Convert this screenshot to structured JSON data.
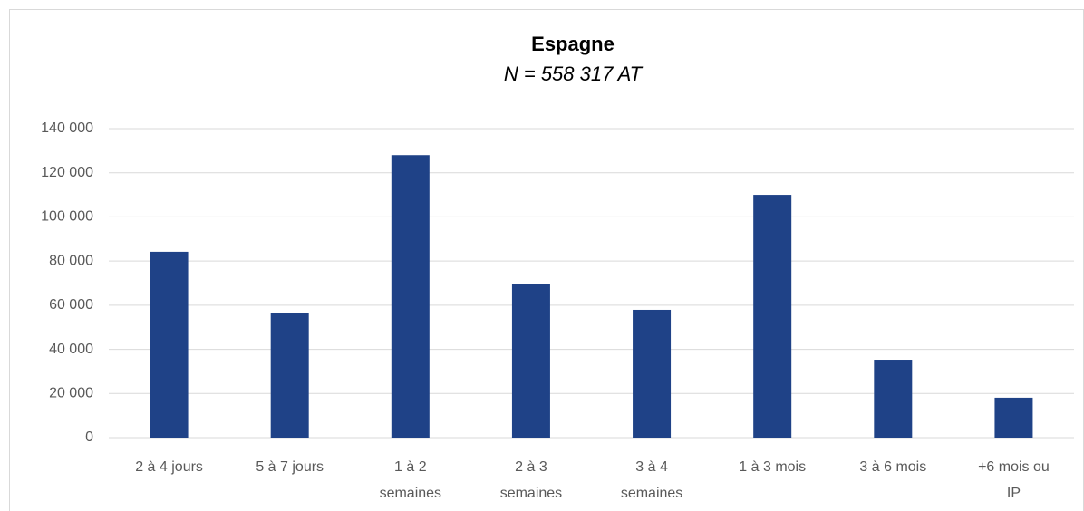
{
  "chart_data": {
    "type": "bar",
    "title": "Espagne",
    "subtitle": "N = 558 317 AT",
    "categories": [
      "2 à 4 jours",
      "5 à 7 jours",
      "1 à 2 semaines",
      "2 à 3 semaines",
      "3 à 4 semaines",
      "1 à 3 mois",
      "3 à 6 mois",
      "+6 mois ou IP"
    ],
    "values": [
      84200,
      56600,
      128000,
      69400,
      57900,
      110000,
      35300,
      18100
    ],
    "color": "#1f4287",
    "ylim": [
      0,
      140000
    ],
    "yticks": [
      0,
      {
        "value": 20000,
        "label": "20 000"
      },
      {
        "value": 40000,
        "label": "40 000"
      },
      {
        "value": 60000,
        "label": "60 000"
      },
      {
        "value": 80000,
        "label": "80 000"
      },
      {
        "value": 100000,
        "label": "100 000"
      },
      {
        "value": 120000,
        "label": "120 000"
      },
      {
        "value": 140000,
        "label": "140 000"
      }
    ],
    "grid": true
  }
}
